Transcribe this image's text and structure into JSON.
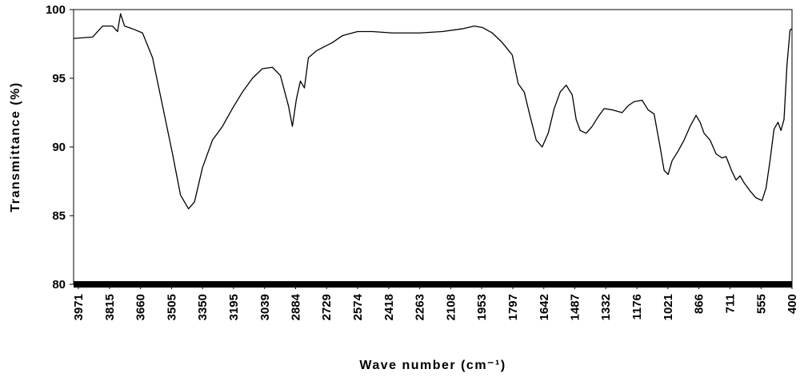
{
  "chart_data": {
    "type": "line",
    "x_label": "Wave number (cm⁻¹)",
    "y_label": "Transmittance (%)",
    "xlim": [
      3995,
      400
    ],
    "ylim": [
      80,
      100
    ],
    "xticks": [
      3971,
      3815,
      3660,
      3505,
      3350,
      3195,
      3039,
      2884,
      2729,
      2574,
      2418,
      2263,
      2108,
      1953,
      1797,
      1642,
      1487,
      1332,
      1176,
      1021,
      866,
      711,
      555,
      400
    ],
    "yticks": [
      80,
      85,
      90,
      95,
      100
    ],
    "x": [
      3995,
      3900,
      3850,
      3800,
      3775,
      3760,
      3740,
      3700,
      3650,
      3600,
      3550,
      3500,
      3460,
      3420,
      3390,
      3350,
      3300,
      3250,
      3200,
      3150,
      3100,
      3050,
      3000,
      2960,
      2920,
      2900,
      2880,
      2860,
      2840,
      2820,
      2780,
      2700,
      2650,
      2574,
      2500,
      2400,
      2263,
      2150,
      2050,
      1990,
      1950,
      1900,
      1850,
      1800,
      1770,
      1740,
      1710,
      1680,
      1650,
      1620,
      1590,
      1560,
      1530,
      1500,
      1480,
      1460,
      1430,
      1400,
      1370,
      1340,
      1300,
      1250,
      1220,
      1190,
      1150,
      1120,
      1090,
      1060,
      1040,
      1020,
      1000,
      970,
      940,
      910,
      880,
      860,
      840,
      810,
      780,
      750,
      730,
      700,
      680,
      660,
      640,
      610,
      580,
      550,
      530,
      510,
      490,
      470,
      455,
      440,
      425,
      410,
      400
    ],
    "series": [
      {
        "color": "#000000",
        "values": [
          97.9,
          98.0,
          98.8,
          98.8,
          98.4,
          99.7,
          98.8,
          98.6,
          98.3,
          96.5,
          93.0,
          89.5,
          86.5,
          85.5,
          86.0,
          88.5,
          90.5,
          91.5,
          92.8,
          94.0,
          95.0,
          95.7,
          95.8,
          95.2,
          93.0,
          91.5,
          93.5,
          94.8,
          94.3,
          96.5,
          97.0,
          97.6,
          98.1,
          98.4,
          98.4,
          98.3,
          98.3,
          98.4,
          98.6,
          98.8,
          98.7,
          98.3,
          97.6,
          96.7,
          94.6,
          94.0,
          92.2,
          90.5,
          90.0,
          91.0,
          92.8,
          94.0,
          94.5,
          93.8,
          92.0,
          91.2,
          91.0,
          91.5,
          92.2,
          92.8,
          92.7,
          92.5,
          93.0,
          93.3,
          93.4,
          92.7,
          92.4,
          90.0,
          88.3,
          88.0,
          89.0,
          89.7,
          90.5,
          91.5,
          92.3,
          91.8,
          91.0,
          90.5,
          89.5,
          89.2,
          89.3,
          88.2,
          87.6,
          87.9,
          87.4,
          86.8,
          86.3,
          86.1,
          87.0,
          89.0,
          91.3,
          91.8,
          91.2,
          92.0,
          96.0,
          98.5,
          98.6
        ]
      }
    ]
  }
}
